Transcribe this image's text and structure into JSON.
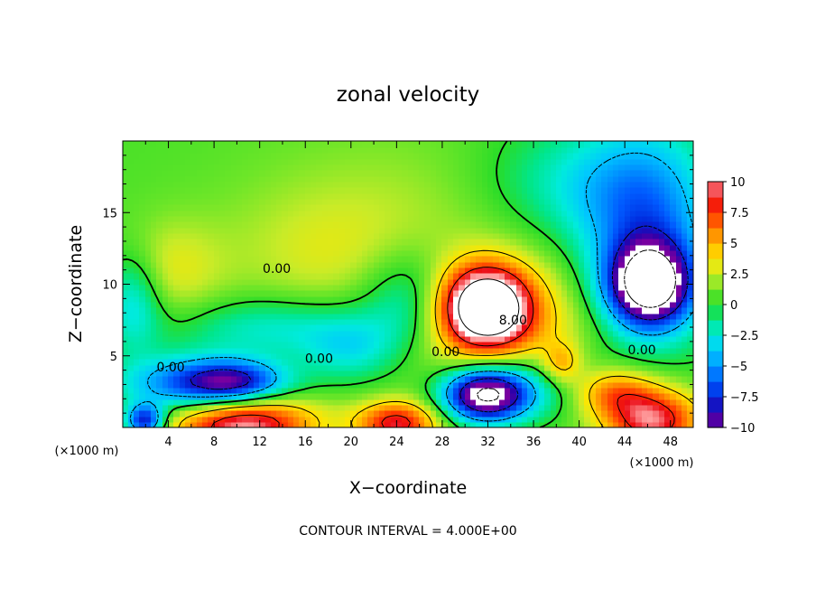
{
  "chart_data": {
    "type": "heatmap",
    "title": "zonal velocity",
    "xlabel": "X−coordinate",
    "ylabel": "Z−coordinate",
    "x_unit_label": "(×1000 m)",
    "y_unit_label": "(×1000 m)",
    "footer": "CONTOUR INTERVAL = 4.000E+00",
    "xlim": [
      0,
      50
    ],
    "ylim": [
      0,
      20
    ],
    "x_ticks": [
      4,
      8,
      12,
      16,
      20,
      24,
      28,
      32,
      36,
      40,
      44,
      48
    ],
    "y_ticks": [
      5,
      10,
      15
    ],
    "colorbar": {
      "range": [
        -10,
        10
      ],
      "ticks": [
        "10",
        "7.5",
        "5",
        "2.5",
        "0",
        "−2.5",
        "−5",
        "−7.5",
        "−10"
      ],
      "tick_values": [
        10,
        7.5,
        5,
        2.5,
        0,
        -2.5,
        -5,
        -7.5,
        -10
      ]
    },
    "contour_labels": [
      {
        "text": "0.00",
        "x": 13.5,
        "z": 10.8
      },
      {
        "text": "0.00",
        "x": 4.2,
        "z": 3.9
      },
      {
        "text": "0.00",
        "x": 17.2,
        "z": 4.5
      },
      {
        "text": "0.00",
        "x": 28.3,
        "z": 5.0
      },
      {
        "text": "0.00",
        "x": 45.5,
        "z": 5.1
      },
      {
        "text": "8.00",
        "x": 34.2,
        "z": 7.2
      }
    ],
    "features": [
      {
        "kind": "max",
        "x": 31.8,
        "z": 8.5,
        "value": 12
      },
      {
        "kind": "min",
        "x": 46.2,
        "z": 9.8,
        "value": -12
      },
      {
        "kind": "min",
        "x": 31.8,
        "z": 2.2,
        "value": -12
      },
      {
        "kind": "max",
        "x": 10.5,
        "z": 0.2,
        "value": 8
      }
    ],
    "grid": false
  }
}
